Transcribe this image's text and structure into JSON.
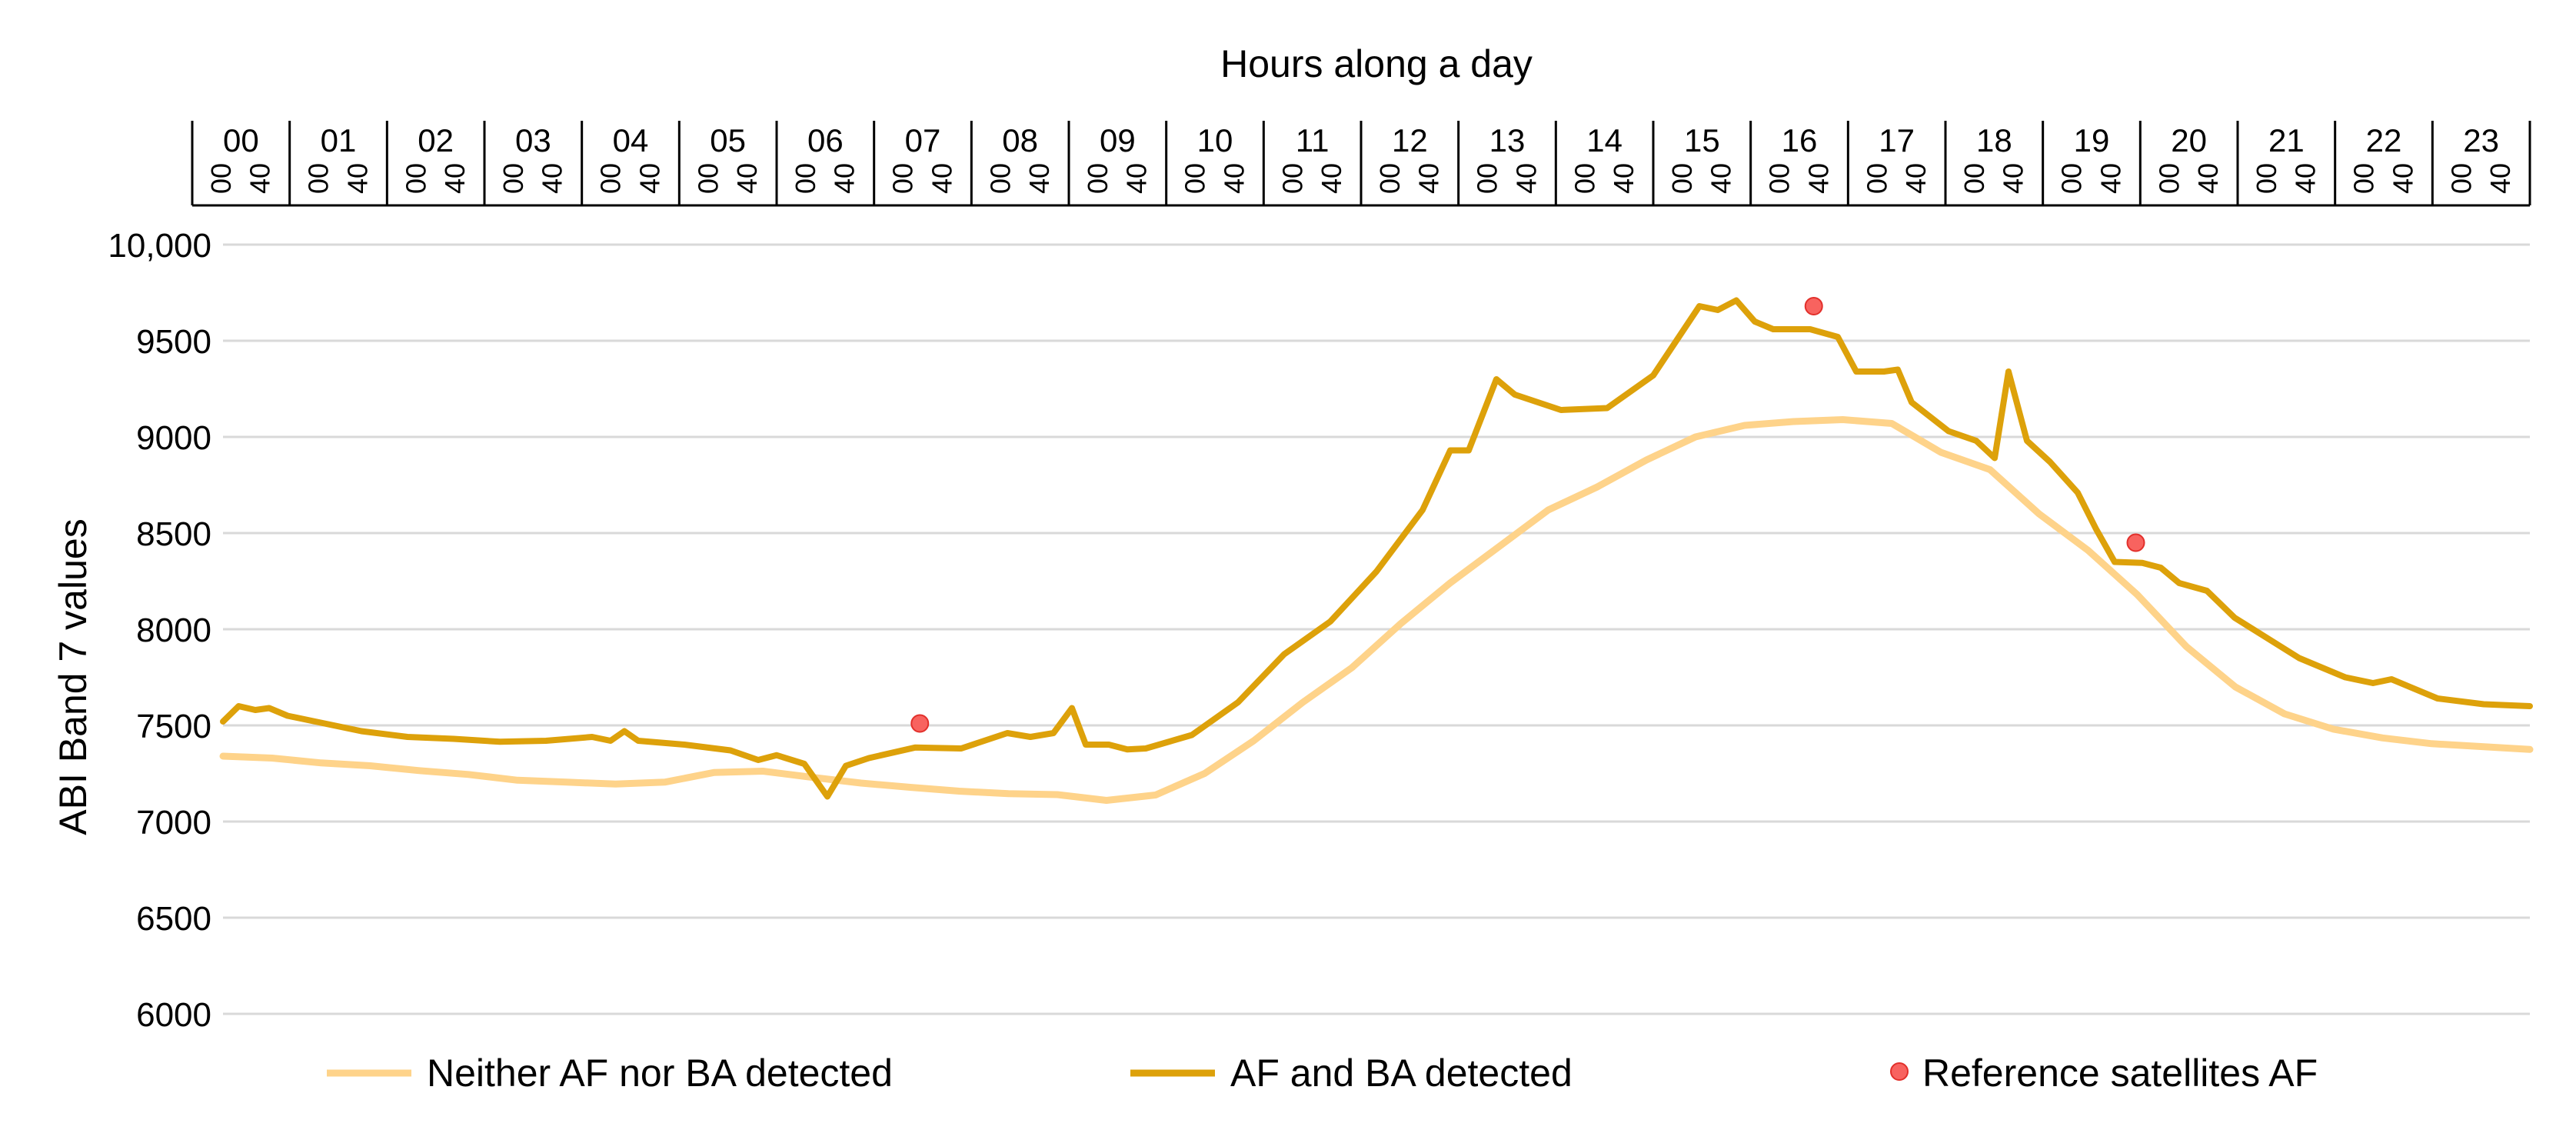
{
  "chart_data": {
    "type": "line",
    "title": "",
    "top_axis_title": "Hours along a day",
    "ylabel": "ABI Band 7 values",
    "xlabel": "",
    "hour_labels": [
      "00",
      "01",
      "02",
      "03",
      "04",
      "05",
      "06",
      "07",
      "08",
      "09",
      "10",
      "11",
      "12",
      "13",
      "14",
      "15",
      "16",
      "17",
      "18",
      "19",
      "20",
      "21",
      "22",
      "23"
    ],
    "minute_labels": [
      "00",
      "40"
    ],
    "y_ticks": [
      "6000",
      "6500",
      "7000",
      "7500",
      "8000",
      "8500",
      "9000",
      "9500",
      "10,000"
    ],
    "ylim": [
      6000,
      10000
    ],
    "xlim_hours": [
      0,
      24
    ],
    "grid": true,
    "legend_position": "bottom",
    "series": [
      {
        "name": "Neither AF nor BA detected",
        "color": "#FED38A",
        "points": [
          [
            0,
            7340
          ],
          [
            0.5,
            7330
          ],
          [
            1,
            7305
          ],
          [
            1.5,
            7290
          ],
          [
            2,
            7265
          ],
          [
            2.5,
            7245
          ],
          [
            3,
            7215
          ],
          [
            3.5,
            7205
          ],
          [
            4,
            7195
          ],
          [
            4.5,
            7205
          ],
          [
            5,
            7255
          ],
          [
            5.5,
            7262
          ],
          [
            6,
            7230
          ],
          [
            6.5,
            7200
          ],
          [
            7,
            7178
          ],
          [
            7.5,
            7158
          ],
          [
            8,
            7145
          ],
          [
            8.5,
            7140
          ],
          [
            9,
            7110
          ],
          [
            9.5,
            7138
          ],
          [
            10,
            7250
          ],
          [
            10.5,
            7420
          ],
          [
            11,
            7620
          ],
          [
            11.5,
            7800
          ],
          [
            12,
            8030
          ],
          [
            12.5,
            8240
          ],
          [
            13,
            8430
          ],
          [
            13.5,
            8620
          ],
          [
            14,
            8740
          ],
          [
            14.5,
            8880
          ],
          [
            15,
            9000
          ],
          [
            15.5,
            9060
          ],
          [
            16,
            9080
          ],
          [
            16.5,
            9090
          ],
          [
            17,
            9070
          ],
          [
            17.5,
            8920
          ],
          [
            18,
            8830
          ],
          [
            18.5,
            8600
          ],
          [
            19,
            8410
          ],
          [
            19.5,
            8180
          ],
          [
            20,
            7910
          ],
          [
            20.5,
            7700
          ],
          [
            21,
            7560
          ],
          [
            21.5,
            7480
          ],
          [
            22,
            7435
          ],
          [
            22.5,
            7405
          ],
          [
            23,
            7390
          ],
          [
            23.5,
            7375
          ]
        ]
      },
      {
        "name": "AF and BA detected",
        "color": "#DDA10A",
        "points": [
          [
            0,
            7520
          ],
          [
            0.17,
            7600
          ],
          [
            0.35,
            7580
          ],
          [
            0.5,
            7590
          ],
          [
            0.7,
            7550
          ],
          [
            1,
            7520
          ],
          [
            1.5,
            7470
          ],
          [
            2,
            7440
          ],
          [
            2.5,
            7430
          ],
          [
            3,
            7415
          ],
          [
            3.5,
            7420
          ],
          [
            4,
            7440
          ],
          [
            4.2,
            7420
          ],
          [
            4.35,
            7470
          ],
          [
            4.5,
            7420
          ],
          [
            5,
            7400
          ],
          [
            5.5,
            7370
          ],
          [
            5.8,
            7320
          ],
          [
            6,
            7345
          ],
          [
            6.3,
            7300
          ],
          [
            6.55,
            7130
          ],
          [
            6.75,
            7290
          ],
          [
            7,
            7330
          ],
          [
            7.5,
            7385
          ],
          [
            8,
            7380
          ],
          [
            8.5,
            7460
          ],
          [
            8.75,
            7440
          ],
          [
            9,
            7460
          ],
          [
            9.2,
            7590
          ],
          [
            9.35,
            7400
          ],
          [
            9.6,
            7400
          ],
          [
            9.8,
            7375
          ],
          [
            10,
            7380
          ],
          [
            10.5,
            7450
          ],
          [
            11,
            7620
          ],
          [
            11.5,
            7870
          ],
          [
            12,
            8040
          ],
          [
            12.5,
            8300
          ],
          [
            13,
            8620
          ],
          [
            13.3,
            8930
          ],
          [
            13.5,
            8930
          ],
          [
            13.8,
            9300
          ],
          [
            14,
            9220
          ],
          [
            14.5,
            9140
          ],
          [
            15,
            9150
          ],
          [
            15.5,
            9320
          ],
          [
            16,
            9680
          ],
          [
            16.2,
            9660
          ],
          [
            16.4,
            9710
          ],
          [
            16.6,
            9600
          ],
          [
            16.8,
            9560
          ],
          [
            17.2,
            9560
          ],
          [
            17.5,
            9520
          ],
          [
            17.7,
            9340
          ],
          [
            18,
            9340
          ],
          [
            18.15,
            9350
          ],
          [
            18.3,
            9180
          ],
          [
            18.7,
            9030
          ],
          [
            19,
            8980
          ],
          [
            19.2,
            8890
          ],
          [
            19.35,
            9340
          ],
          [
            19.55,
            8980
          ],
          [
            19.8,
            8870
          ],
          [
            20.1,
            8710
          ],
          [
            20.3,
            8520
          ],
          [
            20.5,
            8350
          ],
          [
            20.8,
            8345
          ],
          [
            21,
            8320
          ],
          [
            21.2,
            8240
          ],
          [
            21.5,
            8200
          ],
          [
            21.8,
            8060
          ],
          [
            22.2,
            7940
          ],
          [
            22.5,
            7850
          ],
          [
            23,
            7750
          ],
          [
            23.3,
            7720
          ],
          [
            23.5,
            7740
          ],
          [
            24,
            7640
          ],
          [
            24.5,
            7610
          ],
          [
            25,
            7600
          ]
        ]
      },
      {
        "name": "Reference satellites AF",
        "color": "#F8635F",
        "points": [
          [
            7.25,
            7510
          ],
          [
            16.55,
            9680
          ],
          [
            19.9,
            8450
          ]
        ]
      }
    ]
  }
}
